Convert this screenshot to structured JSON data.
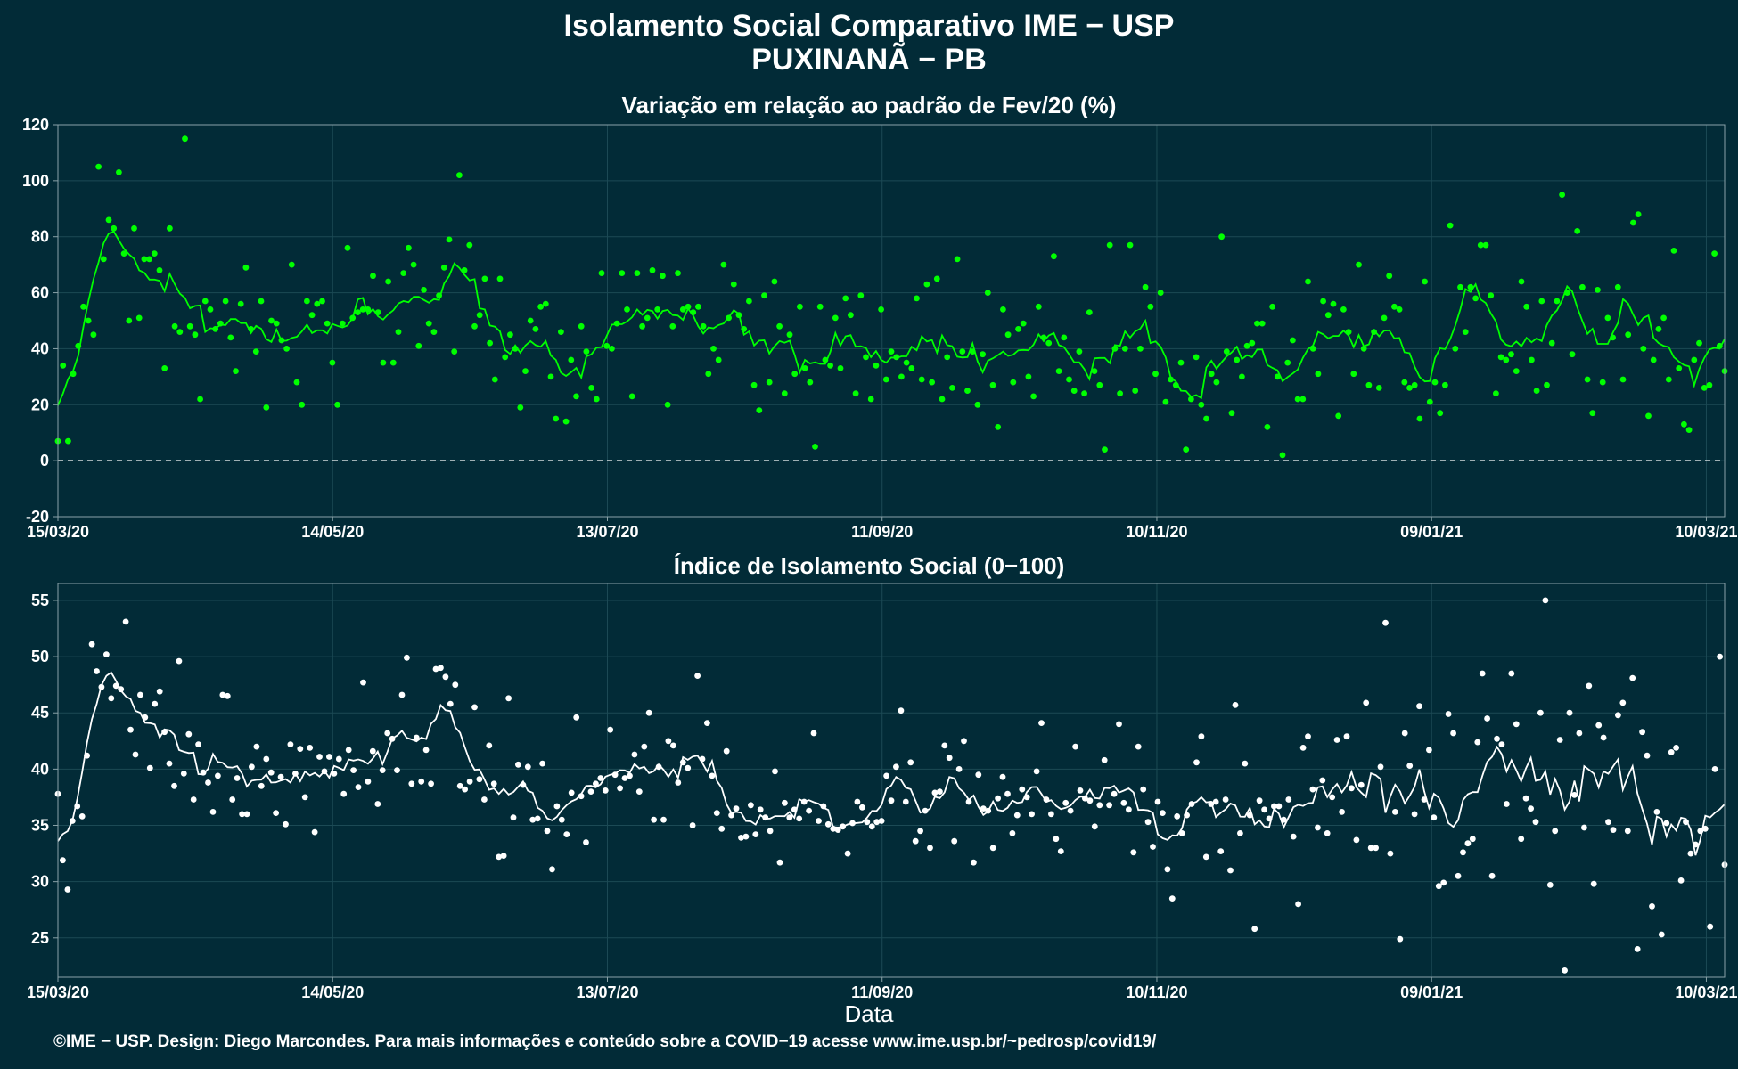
{
  "header": {
    "title_line1": "Isolamento Social Comparativo IME − USP",
    "title_line2": "PUXINANÃ − PB"
  },
  "footer": {
    "credit": "©IME − USP. Design: Diego Marcondes. Para mais informações e conteúdo sobre a COVID−19 acesse www.ime.usp.br/~pedrosp/covid19/"
  },
  "colors": {
    "background": "#022b37",
    "positive_points": "#00ff00",
    "negative_points": "#ff0000",
    "index_points": "#ffffff",
    "grid": "#1c4a55",
    "frame": "#8aa2a8"
  },
  "chart_data": [
    {
      "type": "scatter",
      "title": "Variação em relação ao padrão de Fev/20 (%)",
      "xlabel": "",
      "ylabel": "",
      "x_range": [
        "2020-03-15",
        "2021-03-14"
      ],
      "ylim": [
        -20,
        120
      ],
      "yticks": [
        -20,
        0,
        20,
        40,
        60,
        80,
        100,
        120
      ],
      "xtick_labels": [
        "15/03/20",
        "14/05/20",
        "13/07/20",
        "11/09/20",
        "10/11/20",
        "09/01/21",
        "10/03/21"
      ],
      "reference_line": 0,
      "grid": true,
      "series": [
        {
          "values": [
            7,
            34,
            7,
            31,
            41,
            55,
            50,
            45,
            105,
            72,
            86,
            83,
            103,
            74,
            50,
            83,
            51,
            72,
            72,
            74,
            68,
            33,
            83,
            48,
            46,
            115,
            48,
            45,
            22,
            57,
            54,
            47,
            49,
            57,
            44,
            32,
            56,
            69,
            47,
            39,
            57,
            19,
            50,
            49,
            43,
            40,
            70,
            28,
            20,
            57,
            52,
            56,
            57,
            49,
            35,
            20,
            49,
            76,
            51,
            53,
            54,
            54,
            66,
            53,
            35,
            64,
            35,
            46,
            67,
            76,
            70,
            41,
            61,
            49,
            46,
            59,
            69,
            79,
            39,
            102,
            68,
            77,
            48,
            52,
            65,
            42,
            29,
            65,
            37,
            45,
            40,
            19,
            32,
            50,
            47,
            55,
            56,
            30,
            15,
            46,
            14,
            36,
            23,
            48,
            39,
            26,
            22,
            67,
            41,
            40,
            49,
            67,
            54,
            23,
            67,
            48,
            51,
            68,
            54,
            66,
            20,
            48,
            67,
            54,
            55,
            53,
            55,
            48,
            31,
            40,
            36,
            70,
            51,
            63,
            52,
            47,
            57,
            27,
            18,
            59,
            28,
            64,
            48,
            24,
            45,
            31,
            55,
            33,
            28,
            5,
            55,
            36,
            34,
            51,
            33,
            58,
            52,
            24,
            59,
            37,
            22,
            34,
            54,
            29,
            39,
            37,
            30,
            35,
            33,
            58,
            29,
            63,
            28,
            65,
            22,
            37,
            26,
            72,
            39,
            25,
            39,
            20,
            38,
            60,
            27,
            12,
            54,
            45,
            28,
            47,
            49,
            30,
            23,
            55,
            44,
            42,
            73,
            32,
            44,
            29,
            25,
            39,
            24,
            53,
            32,
            27,
            4,
            77,
            40,
            24,
            40,
            77,
            25,
            40,
            62,
            55,
            31,
            60,
            21,
            29,
            27,
            35,
            4,
            22,
            37,
            20,
            15,
            31,
            28,
            80,
            39,
            17,
            36,
            30,
            41,
            42,
            49,
            49,
            12,
            55,
            30,
            2,
            35,
            43,
            22,
            22,
            64,
            40,
            31,
            57,
            52,
            56,
            16,
            54,
            46,
            31,
            70,
            40,
            27,
            46,
            26,
            51,
            66,
            55,
            54,
            28,
            26,
            27,
            15,
            64,
            21,
            28,
            17,
            27,
            84,
            40,
            62,
            46,
            62,
            58,
            77,
            77,
            59,
            24,
            37,
            36,
            38,
            32,
            64,
            55,
            36,
            25,
            57,
            27,
            42,
            57,
            95,
            60,
            38,
            82,
            62,
            29,
            17,
            61,
            28,
            51,
            44,
            62,
            29,
            45,
            85,
            88,
            40,
            16,
            36,
            47,
            51,
            29,
            75,
            33,
            13,
            11,
            36,
            42,
            26,
            27,
            74,
            41,
            32
          ]
        }
      ]
    },
    {
      "type": "scatter",
      "title": "Índice de Isolamento Social (0−100)",
      "xlabel": "Data",
      "ylabel": "",
      "x_range": [
        "2020-03-15",
        "2021-03-14"
      ],
      "ylim": [
        21.5,
        56.5
      ],
      "yticks": [
        25,
        30,
        35,
        40,
        45,
        50,
        55
      ],
      "xtick_labels": [
        "15/03/20",
        "14/05/20",
        "13/07/20",
        "11/09/20",
        "10/11/20",
        "09/01/21",
        "10/03/21"
      ],
      "grid": true,
      "series": [
        {
          "values": [
            37.8,
            31.9,
            29.3,
            35.4,
            36.7,
            35.8,
            41.2,
            51.1,
            48.7,
            47.3,
            50.2,
            46.3,
            47.4,
            47.1,
            53.1,
            43.5,
            41.3,
            46.6,
            44.6,
            40.1,
            45.8,
            46.9,
            43.3,
            40.5,
            38.5,
            49.6,
            39.6,
            43.1,
            37.3,
            42.2,
            39.7,
            38.8,
            36.2,
            39.4,
            46.6,
            46.5,
            37.3,
            39.2,
            36.0,
            36.0,
            40.2,
            42.0,
            38.5,
            40.9,
            39.7,
            36.1,
            39.3,
            35.1,
            42.2,
            39.6,
            41.8,
            37.5,
            41.9,
            34.4,
            41.1,
            39.8,
            41.1,
            39.6,
            40.9,
            37.8,
            41.7,
            39.9,
            38.4,
            47.7,
            38.9,
            41.6,
            36.9,
            39.9,
            43.2,
            42.7,
            39.9,
            46.6,
            49.9,
            38.7,
            42.8,
            38.9,
            41.7,
            38.7,
            48.9,
            49.0,
            48.2,
            45.8,
            47.5,
            38.5,
            38.2,
            38.9,
            45.5,
            39.1,
            37.3,
            42.1,
            38.7,
            32.2,
            32.3,
            46.3,
            35.7,
            40.4,
            38.6,
            40.2,
            35.5,
            35.6,
            40.5,
            34.5,
            31.1,
            36.7,
            35.5,
            34.2,
            37.9,
            44.6,
            37.6,
            33.5,
            38.0,
            38.7,
            39.2,
            38.1,
            43.5,
            39.5,
            38.3,
            39.2,
            39.4,
            41.3,
            38.0,
            42.0,
            45.0,
            35.5,
            40.2,
            35.5,
            42.5,
            42.1,
            38.8,
            40.6,
            40.1,
            35.0,
            48.3,
            40.9,
            44.1,
            39.4,
            36.1,
            34.7,
            41.6,
            35.9,
            36.5,
            33.9,
            34.0,
            36.8,
            34.2,
            36.4,
            35.7,
            34.5,
            39.8,
            31.7,
            37.0,
            35.7,
            36.4,
            35.6,
            37.1,
            36.3,
            43.2,
            35.4,
            36.7,
            35.1,
            34.7,
            34.6,
            34.9,
            32.5,
            35.2,
            37.1,
            36.6,
            35.3,
            34.9,
            35.3,
            35.4,
            39.4,
            37.2,
            40.2,
            45.2,
            37.1,
            40.6,
            33.6,
            34.5,
            36.3,
            33.0,
            37.9,
            38.0,
            42.1,
            41.0,
            33.6,
            40.0,
            42.5,
            37.1,
            31.7,
            39.5,
            36.5,
            36.3,
            33.0,
            37.4,
            39.3,
            37.8,
            34.3,
            35.9,
            38.2,
            37.5,
            36.0,
            39.8,
            44.1,
            37.3,
            36.0,
            33.8,
            32.7,
            37.0,
            36.3,
            42.0,
            38.1,
            37.4,
            37.2,
            34.9,
            36.8,
            40.8,
            36.8,
            37.8,
            44.0,
            37.0,
            36.4,
            32.6,
            42.0,
            38.2,
            35.3,
            33.1,
            37.1,
            36.1,
            31.1,
            28.5,
            35.8,
            34.3,
            35.9,
            36.9,
            40.6,
            42.9,
            32.2,
            36.9,
            37.1,
            32.7,
            37.3,
            31.0,
            45.7,
            34.3,
            40.5,
            35.9,
            25.8,
            37.2,
            36.4,
            35.6,
            36.7,
            36.7,
            35.5,
            37.3,
            34.0,
            28.0,
            41.9,
            42.9,
            38.2,
            34.8,
            39.0,
            34.3,
            37.5,
            42.6,
            36.2,
            42.9,
            38.3,
            33.7,
            38.6,
            45.9,
            33.0,
            33.0,
            40.2,
            53.0,
            32.5,
            36.2,
            24.9,
            43.2,
            40.3,
            36.0,
            45.6,
            37.3,
            41.7,
            35.7,
            29.6,
            29.9,
            44.9,
            43.2,
            30.5,
            32.6,
            33.4,
            33.8,
            42.4,
            48.5,
            44.5,
            30.5,
            42.7,
            42.2,
            36.9,
            48.5,
            44.0,
            33.8,
            37.4,
            36.5,
            35.3,
            45.0,
            55.0,
            29.7,
            34.5,
            42.6,
            22.1,
            45.0,
            37.7,
            43.2,
            34.8,
            47.4,
            29.8,
            43.9,
            42.8,
            35.3,
            34.6,
            44.8,
            45.9,
            34.5,
            48.1,
            24.0,
            43.3,
            41.2,
            27.8,
            36.2,
            25.3,
            35.2,
            41.5,
            41.9,
            30.1,
            35.3,
            32.5,
            33.3,
            34.5,
            34.7,
            26.0,
            40.0,
            50.0,
            31.5
          ]
        }
      ]
    }
  ]
}
